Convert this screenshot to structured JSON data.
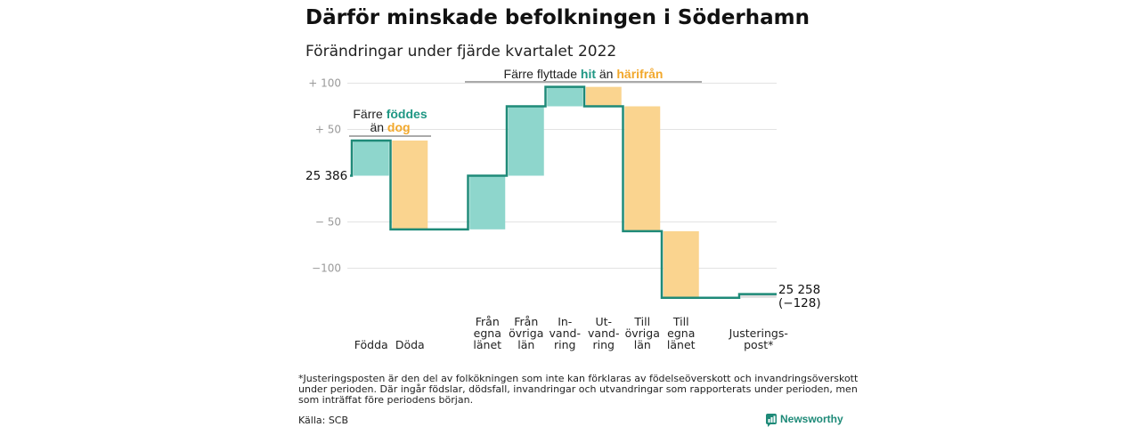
{
  "title": "Därför minskade befolkningen i Söderhamn",
  "subtitle": "Förändringar under fjärde kvartalet 2022",
  "chart_data": {
    "type": "waterfall",
    "start_value": 25386,
    "start_label": "25 386",
    "end_value": 25258,
    "end_label": "25 258",
    "end_change_label": "(−128)",
    "y_axis_unit": "change from start",
    "ylim": [
      -135,
      103
    ],
    "y_ticks": [
      {
        "value": 100,
        "label": "+ 100"
      },
      {
        "value": 50,
        "label": "+ 50"
      },
      {
        "value": -50,
        "label": "− 50"
      },
      {
        "value": -100,
        "label": "−100"
      }
    ],
    "grid": true,
    "steps": [
      {
        "key": "fodda",
        "label_lines": [
          "Födda"
        ],
        "delta": 38,
        "color": "#8ed6cc"
      },
      {
        "key": "doda",
        "label_lines": [
          "Döda"
        ],
        "delta": -96,
        "color": "#fad48f"
      },
      {
        "key": "fran_egna",
        "label_lines": [
          "Från",
          "egna",
          "länet"
        ],
        "delta": 58,
        "color": "#8ed6cc"
      },
      {
        "key": "fran_ovriga",
        "label_lines": [
          "Från",
          "övriga",
          "län"
        ],
        "delta": 75,
        "color": "#8ed6cc"
      },
      {
        "key": "invandring",
        "label_lines": [
          "In-",
          "vand-",
          "ring"
        ],
        "delta": 21,
        "color": "#8ed6cc"
      },
      {
        "key": "utvandring",
        "label_lines": [
          "Ut-",
          "vand-",
          "ring"
        ],
        "delta": -21,
        "color": "#fad48f"
      },
      {
        "key": "till_ovriga",
        "label_lines": [
          "Till",
          "övriga",
          "län"
        ],
        "delta": -135,
        "color": "#fad48f"
      },
      {
        "key": "till_egna",
        "label_lines": [
          "Till",
          "egna",
          "länet"
        ],
        "delta": -72,
        "color": "#fad48f"
      },
      {
        "key": "justering",
        "label_lines": [
          "Justerings-",
          "post*"
        ],
        "delta": 4,
        "color": "#dddddd"
      }
    ],
    "annotations": [
      {
        "key": "births_deaths",
        "parts": [
          {
            "line": 1,
            "text": "Färre ",
            "style": "plain"
          },
          {
            "line": 1,
            "text": "föddes",
            "style": "green"
          },
          {
            "line": 2,
            "text": "än ",
            "style": "plain"
          },
          {
            "line": 2,
            "text": "dog",
            "style": "orange"
          }
        ]
      },
      {
        "key": "migration",
        "parts": [
          {
            "line": 1,
            "text": "Färre flyttade ",
            "style": "plain"
          },
          {
            "line": 1,
            "text": "hit",
            "style": "green"
          },
          {
            "line": 1,
            "text": " än ",
            "style": "plain"
          },
          {
            "line": 1,
            "text": "härifrån",
            "style": "orange"
          }
        ]
      }
    ],
    "line_color": "#1e8a78"
  },
  "footnote_lines": [
    "*Justeringsposten är den del av folkökningen som inte kan förklaras av födelseöverskott och invandringsöverskott",
    "under perioden. Där ingår födslar, dödsfall, invandringar och utvandringar som rapporterats under perioden, men",
    "som inträffat före periodens början."
  ],
  "source": "Källa: SCB",
  "brand": "Newsworthy"
}
